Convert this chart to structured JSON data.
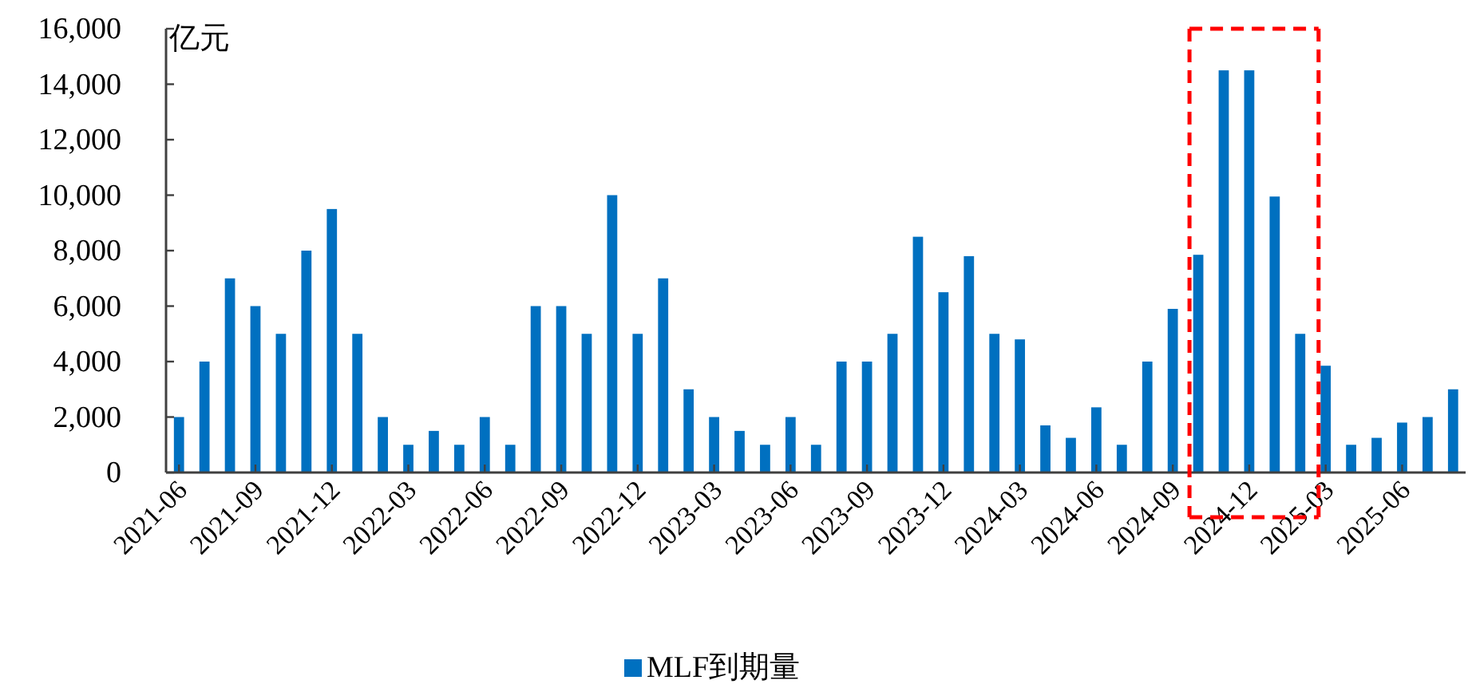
{
  "chart_data": {
    "type": "bar",
    "ylabel": "亿元",
    "legend": "bottom",
    "x": [
      "2021-06",
      "2021-07",
      "2021-08",
      "2021-09",
      "2021-10",
      "2021-11",
      "2021-12",
      "2022-01",
      "2022-02",
      "2022-03",
      "2022-04",
      "2022-05",
      "2022-06",
      "2022-07",
      "2022-08",
      "2022-09",
      "2022-10",
      "2022-11",
      "2022-12",
      "2023-01",
      "2023-02",
      "2023-03",
      "2023-04",
      "2023-05",
      "2023-06",
      "2023-07",
      "2023-08",
      "2023-09",
      "2023-10",
      "2023-11",
      "2023-12",
      "2024-01",
      "2024-02",
      "2024-03",
      "2024-04",
      "2024-05",
      "2024-06",
      "2024-07",
      "2024-08",
      "2024-09",
      "2024-10",
      "2024-11",
      "2024-12",
      "2025-01",
      "2025-02",
      "2025-03",
      "2025-04",
      "2025-05",
      "2025-06",
      "2025-07",
      "2025-08"
    ],
    "series": [
      {
        "name": "MLF到期量",
        "color": "#0070c0",
        "values": [
          2000,
          4000,
          7000,
          6000,
          5000,
          8000,
          9500,
          5000,
          2000,
          1000,
          1500,
          1000,
          2000,
          1000,
          6000,
          6000,
          5000,
          10000,
          5000,
          7000,
          3000,
          2000,
          1500,
          1000,
          2000,
          1000,
          4000,
          4000,
          5000,
          8500,
          6500,
          7800,
          5000,
          4800,
          1700,
          1250,
          2350,
          1000,
          4000,
          5900,
          7850,
          14500,
          14500,
          9950,
          5000,
          3850,
          1000,
          1250,
          1800,
          2000,
          3000
        ]
      }
    ],
    "xlim": [
      "2021-05-16",
      "2025-08-16"
    ],
    "xticks": [
      {
        "value": "2021-06",
        "label": "2021-06"
      },
      {
        "value": "2021-09",
        "label": "2021-09"
      },
      {
        "value": "2021-12",
        "label": "2021-12"
      },
      {
        "value": "2022-03",
        "label": "2022-03"
      },
      {
        "value": "2022-06",
        "label": "2022-06"
      },
      {
        "value": "2022-09",
        "label": "2022-09"
      },
      {
        "value": "2022-12",
        "label": "2022-12"
      },
      {
        "value": "2023-03",
        "label": "2023-03"
      },
      {
        "value": "2023-06",
        "label": "2023-06"
      },
      {
        "value": "2023-09",
        "label": "2023-09"
      },
      {
        "value": "2023-12",
        "label": "2023-12"
      },
      {
        "value": "2024-03",
        "label": "2024-03"
      },
      {
        "value": "2024-06",
        "label": "2024-06"
      },
      {
        "value": "2024-09",
        "label": "2024-09"
      },
      {
        "value": "2024-12",
        "label": "2024-12"
      },
      {
        "value": "2025-03",
        "label": "2025-03"
      },
      {
        "value": "2025-06",
        "label": "2025-06"
      }
    ],
    "ylim": [
      0,
      16000
    ],
    "ref_lines": [
      {
        "axis": "x",
        "value": "2024-09-21",
        "color": "#ff0000",
        "line_style": "dashed"
      },
      {
        "axis": "x",
        "value": "2025-02-23",
        "color": "#ff0000",
        "line_style": "dashed"
      }
    ],
    "yticks": [
      {
        "value": 0,
        "label": "0"
      },
      {
        "value": 2000,
        "label": "2,000"
      },
      {
        "value": 4000,
        "label": "4,000"
      },
      {
        "value": 6000,
        "label": "6,000"
      },
      {
        "value": 8000,
        "label": "8,000"
      },
      {
        "value": 10000,
        "label": "10,000"
      },
      {
        "value": 12000,
        "label": "12,000"
      },
      {
        "value": 14000,
        "label": "14,000"
      },
      {
        "value": 16000,
        "label": "16,000"
      }
    ]
  }
}
